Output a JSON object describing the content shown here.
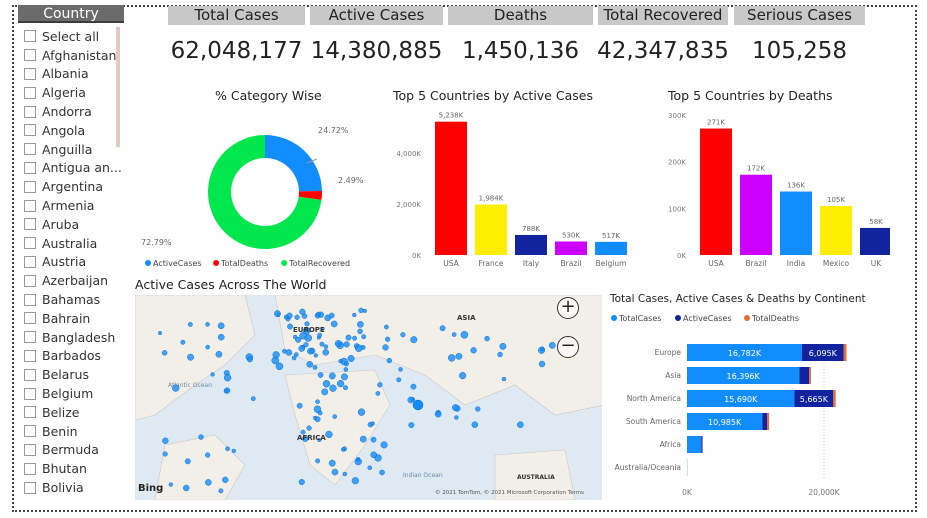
{
  "slicer": {
    "title": "Country",
    "items": [
      "Select all",
      "Afghanistan",
      "Albania",
      "Algeria",
      "Andorra",
      "Angola",
      "Anguilla",
      "Antigua an...",
      "Argentina",
      "Armenia",
      "Aruba",
      "Australia",
      "Austria",
      "Azerbaijan",
      "Bahamas",
      "Bahrain",
      "Bangladesh",
      "Barbados",
      "Belarus",
      "Belgium",
      "Belize",
      "Benin",
      "Bermuda",
      "Bhutan",
      "Bolivia"
    ]
  },
  "kpis": [
    {
      "label": "Total Cases",
      "value": "62,048,177"
    },
    {
      "label": "Active Cases",
      "value": "14,380,885"
    },
    {
      "label": "Deaths",
      "value": "1,450,136"
    },
    {
      "label": "Total Recovered",
      "value": "42,347,835"
    },
    {
      "label": "Serious Cases",
      "value": "105,258"
    }
  ],
  "colors": {
    "active": "#118dff",
    "deaths": "#ff0000",
    "recovered": "#00e64d",
    "navy": "#12239e",
    "orange": "#e66c37"
  },
  "chart_data": [
    {
      "type": "pie",
      "title": "% Category Wise",
      "categories": [
        "ActiveCases",
        "TotalDeaths",
        "TotalRecovered"
      ],
      "values": [
        24.72,
        2.49,
        72.79
      ],
      "labels": [
        "24.72%",
        "2.49%",
        "72.79%"
      ],
      "legend": "bottom-left"
    },
    {
      "type": "bar",
      "title": "Top 5 Countries by Active Cases",
      "categories": [
        "USA",
        "France",
        "Italy",
        "Brazil",
        "Belgium"
      ],
      "values": [
        5238,
        1984,
        788,
        530,
        517
      ],
      "labels": [
        "5,238K",
        "1,984K",
        "788K",
        "530K",
        "517K"
      ],
      "colors": [
        "#ff0000",
        "#ffee00",
        "#12239e",
        "#cc00ff",
        "#118dff"
      ],
      "ylim": [
        0,
        5500
      ],
      "yticks": [
        "0K",
        "2,000K",
        "4,000K"
      ],
      "ytick_values": [
        0,
        2000,
        4000
      ]
    },
    {
      "type": "bar",
      "title": "Top 5 Countries by Deaths",
      "categories": [
        "USA",
        "Brazil",
        "India",
        "Mexico",
        "UK"
      ],
      "values": [
        271,
        172,
        136,
        105,
        58
      ],
      "labels": [
        "271K",
        "172K",
        "136K",
        "105K",
        "58K"
      ],
      "colors": [
        "#ff0000",
        "#cc00ff",
        "#118dff",
        "#ffee00",
        "#12239e"
      ],
      "ylim": [
        0,
        300
      ],
      "yticks": [
        "0K",
        "100K",
        "200K",
        "300K"
      ],
      "ytick_values": [
        0,
        100,
        200,
        300
      ]
    },
    {
      "type": "bar",
      "orientation": "horizontal",
      "stacked": true,
      "title": "Total Cases, Active Cases & Deaths by Continent",
      "categories": [
        "Europe",
        "Asia",
        "North America",
        "South America",
        "Africa",
        "Australia/Oceania"
      ],
      "series": [
        {
          "name": "TotalCases",
          "values": [
            16782,
            16396,
            15690,
            10985,
            2100,
            30
          ],
          "labels": [
            "16,782K",
            "16,396K",
            "15,690K",
            "10,985K",
            "",
            ""
          ]
        },
        {
          "name": "ActiveCases",
          "values": [
            6095,
            1450,
            5665,
            700,
            150,
            5
          ],
          "labels": [
            "6,095K",
            "",
            "5,665K",
            "",
            "",
            ""
          ]
        },
        {
          "name": "TotalDeaths",
          "values": [
            400,
            250,
            350,
            300,
            50,
            1
          ]
        }
      ],
      "xticks": [
        "0K",
        "20,000K"
      ],
      "xtick_values": [
        0,
        20000
      ],
      "legend": "top-left"
    }
  ],
  "map": {
    "title": "Active Cases Across The World",
    "labels": [
      "EUROPE",
      "ASIA",
      "AFRICA",
      "Atlantic Ocean",
      "Indian Ocean",
      "AUSTRALIA"
    ],
    "attribution": "© 2021 TomTom, © 2021 Microsoft Corporation Terms",
    "brand": "Bing",
    "zoom_in": "+",
    "zoom_out": "−"
  }
}
